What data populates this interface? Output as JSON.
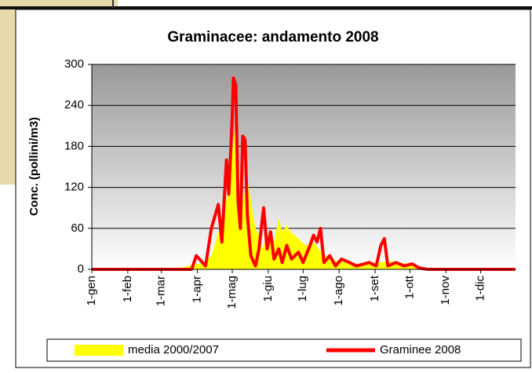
{
  "chart_data": {
    "type": "area-line",
    "title": "Graminacee: andamento 2008",
    "y_label": "Conc. (pollini/m3)",
    "xlim": [
      1,
      366
    ],
    "xticks": [
      {
        "value": 1,
        "label": "1-gen"
      },
      {
        "value": 32,
        "label": "1-feb"
      },
      {
        "value": 61,
        "label": "1-mar"
      },
      {
        "value": 92,
        "label": "1-apr"
      },
      {
        "value": 122,
        "label": "1-mag"
      },
      {
        "value": 153,
        "label": "1-giu"
      },
      {
        "value": 183,
        "label": "1-lug"
      },
      {
        "value": 214,
        "label": "1-ago"
      },
      {
        "value": 245,
        "label": "1-set"
      },
      {
        "value": 275,
        "label": "1-ott"
      },
      {
        "value": 306,
        "label": "1-nov"
      },
      {
        "value": 336,
        "label": "1-dic"
      }
    ],
    "ylim": [
      0,
      300
    ],
    "yticks": [
      0,
      60,
      120,
      180,
      240,
      300
    ],
    "grid": true,
    "series": [
      {
        "name": "media 2000/2007",
        "color": "#ffff00",
        "kind": "area",
        "x": [
          1,
          74,
          84,
          98,
          104,
          111,
          118,
          121,
          125,
          128,
          131,
          135,
          138,
          142,
          145,
          148,
          152,
          155,
          158,
          162,
          165,
          169,
          172,
          179,
          185,
          192,
          199,
          206,
          219,
          233,
          246,
          260,
          273,
          287,
          300,
          366
        ],
        "values": [
          0,
          0,
          5,
          10,
          20,
          60,
          110,
          160,
          215,
          150,
          100,
          130,
          100,
          60,
          50,
          30,
          50,
          55,
          40,
          75,
          55,
          65,
          55,
          45,
          35,
          40,
          25,
          15,
          10,
          8,
          10,
          12,
          8,
          3,
          0,
          0
        ]
      },
      {
        "name": "Graminee 2008",
        "color": "#ff0000",
        "kind": "line",
        "x": [
          1,
          87,
          91,
          99,
          104,
          110,
          113,
          117,
          119,
          122,
          123,
          125,
          127,
          129,
          131,
          133,
          135,
          138,
          142,
          145,
          149,
          152,
          155,
          158,
          162,
          165,
          169,
          173,
          179,
          183,
          189,
          192,
          195,
          198,
          201,
          206,
          211,
          216,
          223,
          229,
          240,
          246,
          250,
          253,
          256,
          263,
          270,
          277,
          283,
          290,
          366
        ],
        "values": [
          0,
          0,
          20,
          5,
          60,
          95,
          40,
          160,
          110,
          225,
          280,
          270,
          100,
          60,
          195,
          190,
          80,
          20,
          5,
          30,
          90,
          30,
          55,
          15,
          30,
          10,
          35,
          15,
          25,
          10,
          35,
          50,
          40,
          60,
          10,
          20,
          5,
          15,
          10,
          5,
          10,
          5,
          35,
          45,
          5,
          10,
          5,
          8,
          2,
          0,
          0
        ]
      }
    ]
  }
}
